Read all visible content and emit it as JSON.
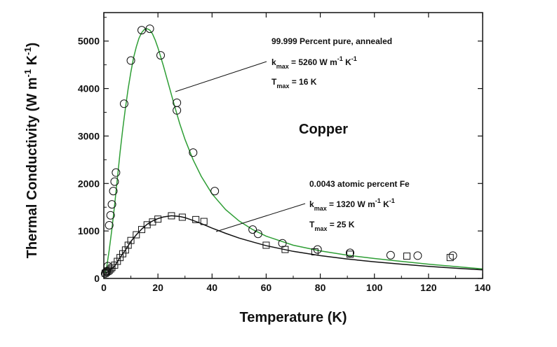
{
  "chart_data": {
    "type": "scatter",
    "title": "Copper",
    "xlabel": "Temperature (K)",
    "ylabel": "Thermal Conductivity (W m",
    "ylabel_sup1": "-1",
    "ylabel_mid": " K",
    "ylabel_sup2": "-1",
    "ylabel_end": ")",
    "xlim": [
      0,
      140
    ],
    "ylim": [
      0,
      5600
    ],
    "xticks": [
      0,
      20,
      40,
      60,
      80,
      100,
      120,
      140
    ],
    "yticks": [
      0,
      1000,
      2000,
      3000,
      4000,
      5000
    ],
    "grid": false,
    "colors": {
      "curve_pure": "#2e9e35",
      "curve_fe": "#111111",
      "axis": "#111111"
    },
    "series": [
      {
        "marker": "circle",
        "points": [
          [
            0.5,
            105
          ],
          [
            1.0,
            150
          ],
          [
            1.5,
            260
          ],
          [
            2.0,
            1120
          ],
          [
            2.5,
            1330
          ],
          [
            3.0,
            1560
          ],
          [
            3.5,
            1840
          ],
          [
            4.0,
            2040
          ],
          [
            4.5,
            2230
          ],
          [
            7.5,
            3680
          ],
          [
            10.0,
            4590
          ],
          [
            14.0,
            5230
          ],
          [
            17.0,
            5260
          ],
          [
            21.0,
            4700
          ],
          [
            27.0,
            3700
          ],
          [
            27.0,
            3540
          ],
          [
            33.0,
            2650
          ],
          [
            41.0,
            1840
          ],
          [
            55.0,
            1030
          ],
          [
            57.0,
            940
          ],
          [
            66.0,
            740
          ],
          [
            79.0,
            610
          ],
          [
            91.0,
            540
          ],
          [
            106.0,
            490
          ],
          [
            116.0,
            480
          ],
          [
            129.0,
            480
          ]
        ]
      },
      {
        "marker": "square",
        "points": [
          [
            0.5,
            110
          ],
          [
            1.0,
            130
          ],
          [
            1.5,
            150
          ],
          [
            2.0,
            170
          ],
          [
            2.5,
            200
          ],
          [
            3.0,
            230
          ],
          [
            4.0,
            280
          ],
          [
            5.0,
            360
          ],
          [
            6.0,
            440
          ],
          [
            7.0,
            520
          ],
          [
            8.0,
            600
          ],
          [
            9.0,
            700
          ],
          [
            10.0,
            800
          ],
          [
            12.0,
            920
          ],
          [
            14.0,
            1030
          ],
          [
            16.0,
            1130
          ],
          [
            18.0,
            1190
          ],
          [
            20.0,
            1250
          ],
          [
            25.0,
            1320
          ],
          [
            29.0,
            1290
          ],
          [
            34.0,
            1240
          ],
          [
            37.0,
            1200
          ],
          [
            60.0,
            700
          ],
          [
            67.0,
            610
          ],
          [
            78.0,
            560
          ],
          [
            91.0,
            510
          ],
          [
            112.0,
            470
          ],
          [
            128.0,
            440
          ]
        ]
      }
    ],
    "curves": [
      {
        "name": "99.999 Percent pure, annealed",
        "points": [
          [
            0.5,
            110
          ],
          [
            1,
            220
          ],
          [
            2,
            600
          ],
          [
            3,
            1050
          ],
          [
            4,
            1550
          ],
          [
            5,
            2100
          ],
          [
            6,
            2650
          ],
          [
            7,
            3150
          ],
          [
            8,
            3600
          ],
          [
            9,
            4000
          ],
          [
            10,
            4350
          ],
          [
            11,
            4650
          ],
          [
            12,
            4880
          ],
          [
            13,
            5060
          ],
          [
            14,
            5180
          ],
          [
            15,
            5245
          ],
          [
            16,
            5260
          ],
          [
            17,
            5230
          ],
          [
            18,
            5150
          ],
          [
            19,
            5020
          ],
          [
            20,
            4860
          ],
          [
            22,
            4480
          ],
          [
            24,
            4070
          ],
          [
            26,
            3660
          ],
          [
            28,
            3270
          ],
          [
            30,
            2930
          ],
          [
            33,
            2500
          ],
          [
            36,
            2150
          ],
          [
            40,
            1780
          ],
          [
            45,
            1450
          ],
          [
            50,
            1210
          ],
          [
            55,
            1030
          ],
          [
            60,
            890
          ],
          [
            70,
            700
          ],
          [
            80,
            580
          ],
          [
            90,
            490
          ],
          [
            100,
            420
          ],
          [
            110,
            360
          ],
          [
            120,
            300
          ],
          [
            130,
            250
          ],
          [
            140,
            200
          ]
        ]
      },
      {
        "name": "0.0043 atomic percent Fe",
        "points": [
          [
            0.5,
            105
          ],
          [
            2,
            150
          ],
          [
            4,
            260
          ],
          [
            6,
            440
          ],
          [
            8,
            600
          ],
          [
            10,
            780
          ],
          [
            12,
            920
          ],
          [
            14,
            1040
          ],
          [
            16,
            1140
          ],
          [
            18,
            1210
          ],
          [
            20,
            1260
          ],
          [
            22,
            1295
          ],
          [
            25,
            1320
          ],
          [
            28,
            1305
          ],
          [
            30,
            1280
          ],
          [
            35,
            1180
          ],
          [
            40,
            1060
          ],
          [
            45,
            950
          ],
          [
            50,
            850
          ],
          [
            55,
            770
          ],
          [
            60,
            690
          ],
          [
            70,
            570
          ],
          [
            80,
            480
          ],
          [
            90,
            410
          ],
          [
            100,
            350
          ],
          [
            110,
            300
          ],
          [
            120,
            255
          ],
          [
            130,
            215
          ],
          [
            140,
            180
          ]
        ]
      }
    ],
    "annotations": {
      "pure": {
        "title": "99.999 Percent pure, annealed",
        "kmax_sym": "k",
        "kmax_sub": "max",
        "kmax_val": " = 5260 W m",
        "kmax_sup1": "-1",
        "kmax_unit": " K",
        "kmax_sup2": "-1",
        "tmax_sym": "T",
        "tmax_sub": "max",
        "tmax_val": " = 16 K"
      },
      "fe": {
        "title": "0.0043 atomic percent Fe",
        "kmax_sym": "k",
        "kmax_sub": "max",
        "kmax_val": " = 1320 W m",
        "kmax_sup1": "-1",
        "kmax_unit": " K",
        "kmax_sup2": "-1",
        "tmax_sym": "T",
        "tmax_sub": "max",
        "tmax_val": " = 25 K"
      }
    }
  }
}
